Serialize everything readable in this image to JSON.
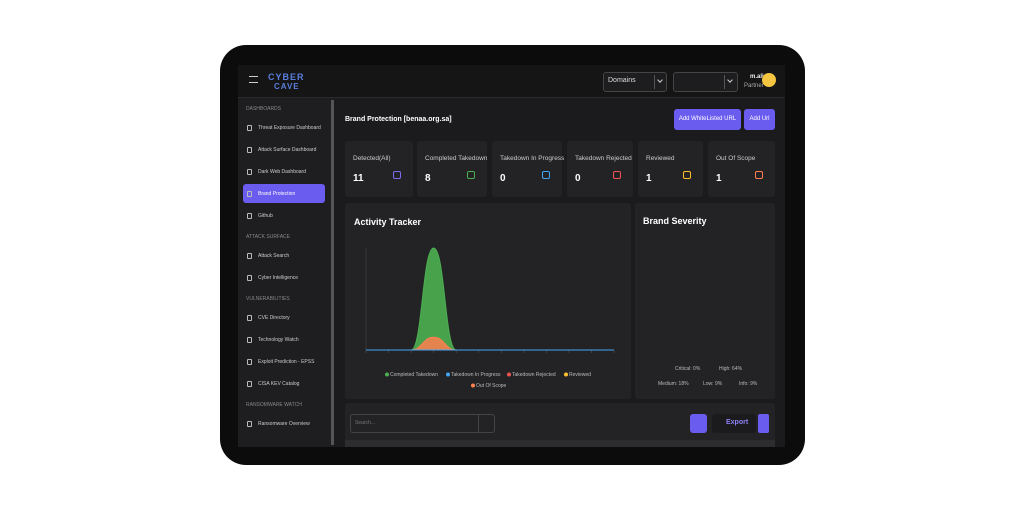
{
  "header": {
    "logo_top": "CYBER",
    "logo_bottom": "CAVE",
    "domain_select": "Domains",
    "user_name": "m.ali",
    "user_role": "Partner"
  },
  "sidebar": {
    "sections": [
      {
        "title": "DASHBOARDS",
        "items": [
          "Threat Exposure Dashboard",
          "Attack Surface Dashboard",
          "Dark Web Dashboard",
          "Brand Protection",
          "Github"
        ]
      },
      {
        "title": "ATTACK SURFACE",
        "items": [
          "Attack Search",
          "Cyber Intelligence"
        ]
      },
      {
        "title": "VULNERABILITIES",
        "items": [
          "CVE Directory",
          "Technology Watch",
          "Exploit Prediction - EPSS",
          "CISA KEV Catalog"
        ]
      },
      {
        "title": "RANSOMWARE WATCH",
        "items": [
          "Ransomware Overview"
        ]
      }
    ]
  },
  "content": {
    "title": "Brand Protection [benaa.org.sa]",
    "buttons": [
      "Add WhiteListed URL",
      "Add Url"
    ]
  },
  "stats": [
    {
      "label": "Detected(All)",
      "value": 11,
      "color": "#7c6cf0"
    },
    {
      "label": "Completed Takedown",
      "value": 8,
      "color": "#4caf50"
    },
    {
      "label": "Takedown In Progress",
      "value": 0,
      "color": "#42a5f5"
    },
    {
      "label": "Takedown Rejected",
      "value": 0,
      "color": "#ef5350"
    },
    {
      "label": "Reviewed",
      "value": 1,
      "color": "#fbc02d"
    },
    {
      "label": "Out Of Scope",
      "value": 1,
      "color": "#ff7f50"
    }
  ],
  "activity_tracker": {
    "type": "area",
    "title": "Activity Tracker",
    "categories": [
      null,
      null,
      null,
      null,
      null,
      null,
      null,
      null,
      null,
      null,
      null,
      null
    ],
    "series": [
      {
        "name": "Completed Takedown",
        "color": "#4caf50",
        "values": [
          0,
          0,
          0,
          8,
          0,
          0,
          0,
          0,
          0,
          0,
          0,
          0
        ]
      },
      {
        "name": "Takedown In Progress",
        "color": "#42a5f5",
        "values": [
          0,
          0,
          0,
          0,
          0,
          0,
          0,
          0,
          0,
          0,
          0,
          0
        ]
      },
      {
        "name": "Takedown Rejected",
        "color": "#ef5350",
        "values": [
          0,
          0,
          0,
          0,
          0,
          0,
          0,
          0,
          0,
          0,
          0,
          0
        ]
      },
      {
        "name": "Reviewed",
        "color": "#fbc02d",
        "values": [
          0,
          0,
          0,
          0,
          0,
          0,
          0,
          0,
          0,
          0,
          0,
          0
        ]
      },
      {
        "name": "Out Of Scope",
        "color": "#ff7f50",
        "values": [
          0,
          0,
          0,
          1,
          0,
          0,
          0,
          0,
          0,
          0,
          0,
          0
        ]
      }
    ]
  },
  "brand_severity": {
    "type": "polar",
    "title": "Brand Severity",
    "values": [
      0,
      64,
      18,
      9,
      9
    ],
    "value_labels": [
      "Critical: 0%",
      "High: 64%",
      "Medium: 18%",
      "Low: 9%",
      "Info: 9%"
    ],
    "colors": [
      "#ef5350",
      "#ff7f50",
      "#fbc02d",
      "#4caf50",
      "#42a5f5"
    ]
  },
  "table": {
    "search_placeholder": "Search...",
    "export": "Export"
  }
}
